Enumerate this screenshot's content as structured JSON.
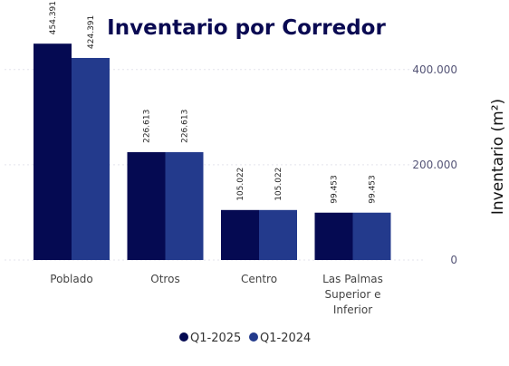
{
  "chart_data": {
    "type": "bar",
    "title": "Inventario por Corredor",
    "ylabel": "Inventario (m²)",
    "categories": [
      [
        "Poblado"
      ],
      [
        "Otros"
      ],
      [
        "Centro"
      ],
      [
        "Las Palmas",
        "Superior e",
        "Inferior"
      ]
    ],
    "series": [
      {
        "name": "Q1-2025",
        "color": "#050a52",
        "values": [
          454391,
          226613,
          105022,
          99453
        ],
        "labels": [
          "454.391",
          "226.613",
          "105.022",
          "99.453"
        ]
      },
      {
        "name": "Q1-2024",
        "color": "#233a8c",
        "values": [
          424391,
          226613,
          105022,
          99453
        ],
        "labels": [
          "424.391",
          "226.613",
          "105.022",
          "99.453"
        ]
      }
    ],
    "y_ticks": [
      {
        "value": 0,
        "label": "0"
      },
      {
        "value": 200000,
        "label": "200.000"
      },
      {
        "value": 400000,
        "label": "400.000"
      }
    ],
    "ylim": [
      0,
      470000
    ],
    "grid": true,
    "legend_position": "bottom-center",
    "y_axis_side": "right"
  }
}
